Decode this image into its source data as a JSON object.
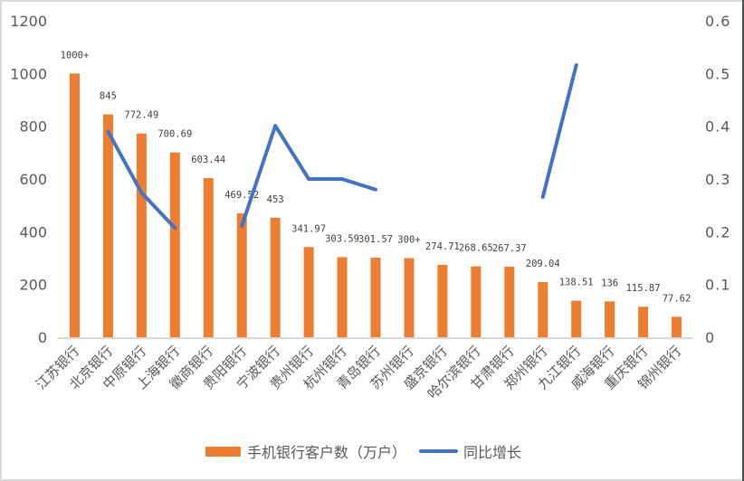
{
  "chart_data": {
    "type": "bar+line",
    "title": "",
    "categories": [
      "江苏银行",
      "北京银行",
      "中原银行",
      "上海银行",
      "徽商银行",
      "贵阳银行",
      "宁波银行",
      "贵州银行",
      "杭州银行",
      "青岛银行",
      "苏州银行",
      "盛京银行",
      "哈尔滨银行",
      "甘肃银行",
      "郑州银行",
      "九江银行",
      "威海银行",
      "重庆银行",
      "锦州银行"
    ],
    "series": [
      {
        "name": "手机银行客户数（万户）",
        "type": "bar",
        "axis": "left",
        "color": "#ed7d31",
        "values": [
          1000,
          845,
          772.49,
          700.69,
          603.44,
          469.52,
          453,
          341.97,
          303.59,
          301.57,
          300,
          274.71,
          268.65,
          267.37,
          209.04,
          138.51,
          136,
          115.87,
          77.62
        ],
        "labels": [
          "1000+",
          "845",
          "772.49",
          "700.69",
          "603.44",
          "469.52",
          "453",
          "341.97",
          "303.59",
          "301.57",
          "300+",
          "274.71",
          "268.65",
          "267.37",
          "209.04",
          "138.51",
          "136",
          "115.87",
          "77.62"
        ]
      },
      {
        "name": "同比增长",
        "type": "line",
        "axis": "right",
        "color": "#4472c4",
        "values": [
          null,
          0.39,
          0.274,
          0.207,
          null,
          0.211,
          0.401,
          0.3,
          0.3,
          0.28,
          null,
          null,
          null,
          null,
          0.266,
          0.516,
          null,
          null,
          null
        ]
      }
    ],
    "left_axis": {
      "ylim": [
        0,
        1200
      ],
      "ticks": [
        "0",
        "200",
        "400",
        "600",
        "800",
        "1000",
        "1200"
      ]
    },
    "right_axis": {
      "ylim": [
        0,
        0.6
      ],
      "ticks": [
        "0",
        "0.1",
        "0.2",
        "0.3",
        "0.4",
        "0.5",
        "0.6"
      ]
    },
    "xlabel": "",
    "ylabel": "",
    "grid": false,
    "legend_position": "bottom"
  },
  "legend": {
    "bar_label": "手机银行客户数（万户）",
    "line_label": "同比增长"
  }
}
